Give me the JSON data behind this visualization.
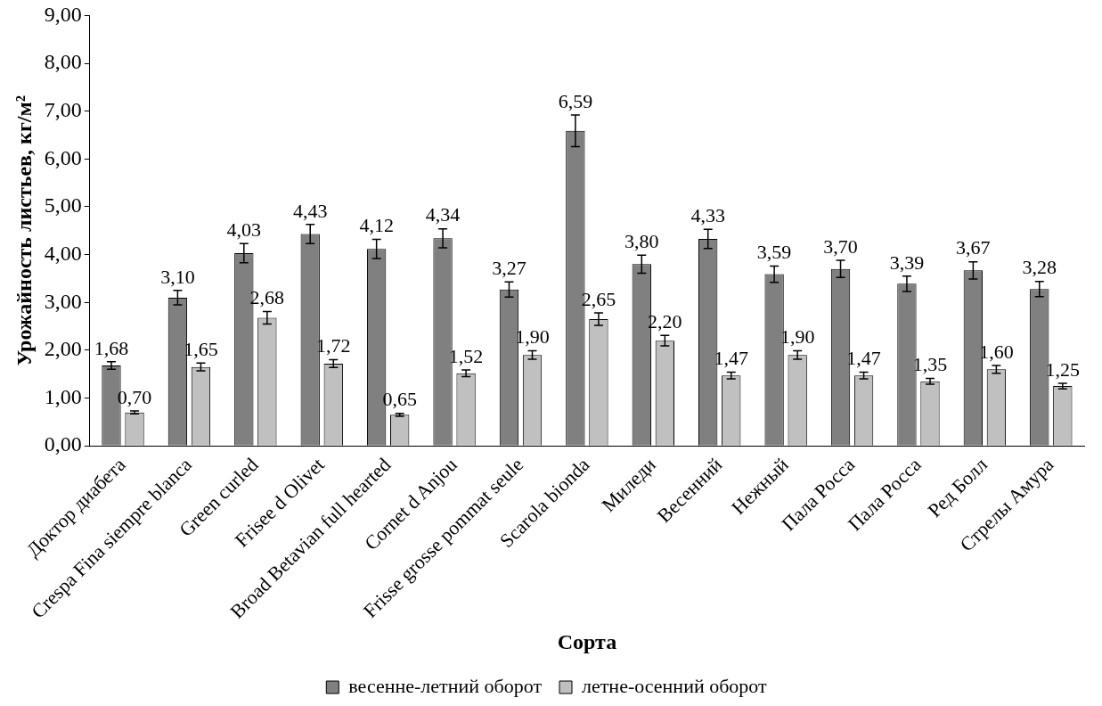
{
  "chart_data": {
    "type": "bar",
    "xlabel": "Сорта",
    "ylabel": "Урожайность листьев, кг/м²",
    "categories": [
      "Доктор диабета",
      "Crespa Fina siempre blanca",
      "Green curled",
      "Frisee d Olivet",
      "Broad Betavian full hearted",
      "Cornet d Anjou",
      "Frisse grosse pommat seule",
      "Scarola bionda",
      "Миледи",
      "Весенний",
      "Нежный",
      "Пала Росса",
      "Пала Росса",
      "Ред Болл",
      "Стрелы Амура"
    ],
    "series": [
      {
        "name": "весенне-летний оборот",
        "color": "#808080",
        "values": [
          1.68,
          3.1,
          4.03,
          4.43,
          4.12,
          4.34,
          3.27,
          6.59,
          3.8,
          4.33,
          3.59,
          3.7,
          3.39,
          3.67,
          3.28
        ],
        "errors": [
          0.08,
          0.15,
          0.2,
          0.2,
          0.2,
          0.2,
          0.16,
          0.33,
          0.19,
          0.2,
          0.17,
          0.18,
          0.16,
          0.18,
          0.16
        ],
        "value_labels": [
          "1,68",
          "3,10",
          "4,03",
          "4,43",
          "4,12",
          "4,34",
          "3,27",
          "6,59",
          "3,80",
          "4,33",
          "3,59",
          "3,70",
          "3,39",
          "3,67",
          "3,28"
        ]
      },
      {
        "name": "летне-осенний оборот",
        "color": "#c0c0c0",
        "values": [
          0.7,
          1.65,
          2.68,
          1.72,
          0.65,
          1.52,
          1.9,
          2.65,
          2.2,
          1.47,
          1.9,
          1.47,
          1.35,
          1.6,
          1.25
        ],
        "errors": [
          0.03,
          0.08,
          0.13,
          0.08,
          0.03,
          0.07,
          0.09,
          0.13,
          0.11,
          0.07,
          0.09,
          0.07,
          0.06,
          0.08,
          0.06
        ],
        "value_labels": [
          "0,70",
          "1,65",
          "2,68",
          "1,72",
          "0,65",
          "1,52",
          "1,90",
          "2,65",
          "2,20",
          "1,47",
          "1,90",
          "1,47",
          "1,35",
          "1,60",
          "1,25"
        ]
      }
    ],
    "ylim": [
      0,
      9
    ],
    "yticks": [
      {
        "value": 0,
        "label": "0,00"
      },
      {
        "value": 1,
        "label": "1,00"
      },
      {
        "value": 2,
        "label": "2,00"
      },
      {
        "value": 3,
        "label": "3,00"
      },
      {
        "value": 4,
        "label": "4,00"
      },
      {
        "value": 5,
        "label": "5,00"
      },
      {
        "value": 6,
        "label": "6,00"
      },
      {
        "value": 7,
        "label": "7,00"
      },
      {
        "value": 8,
        "label": "8,00"
      },
      {
        "value": 9,
        "label": "9,00"
      }
    ],
    "grid": false,
    "legend": "bottom"
  }
}
